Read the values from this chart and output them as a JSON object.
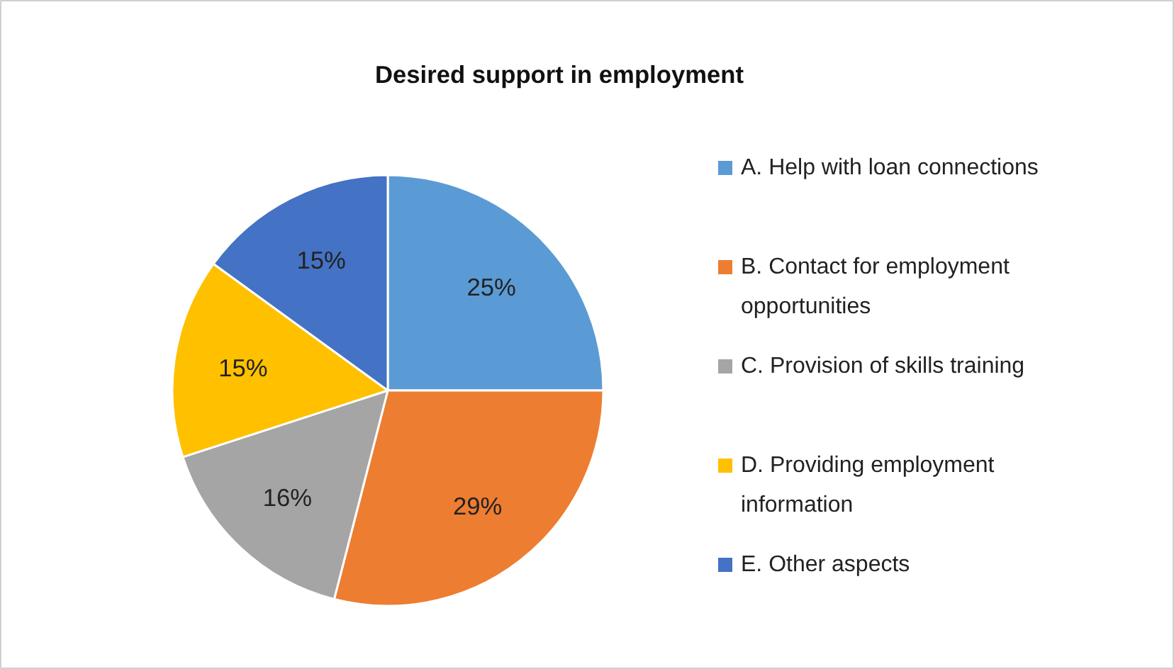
{
  "chart_data": {
    "type": "pie",
    "title": "Desired support in employment",
    "categories": [
      "A. Help with loan connections",
      "B. Contact for employment opportunities",
      "C. Provision of skills training",
      "D. Providing employment information",
      "E. Other aspects"
    ],
    "values": [
      25,
      29,
      16,
      15,
      15
    ],
    "colors": [
      "#5b9bd5",
      "#ed7d31",
      "#a5a5a5",
      "#ffc000",
      "#4472c4"
    ],
    "value_labels": [
      "25%",
      "29%",
      "16%",
      "15%",
      "15%"
    ],
    "legend": "right"
  }
}
